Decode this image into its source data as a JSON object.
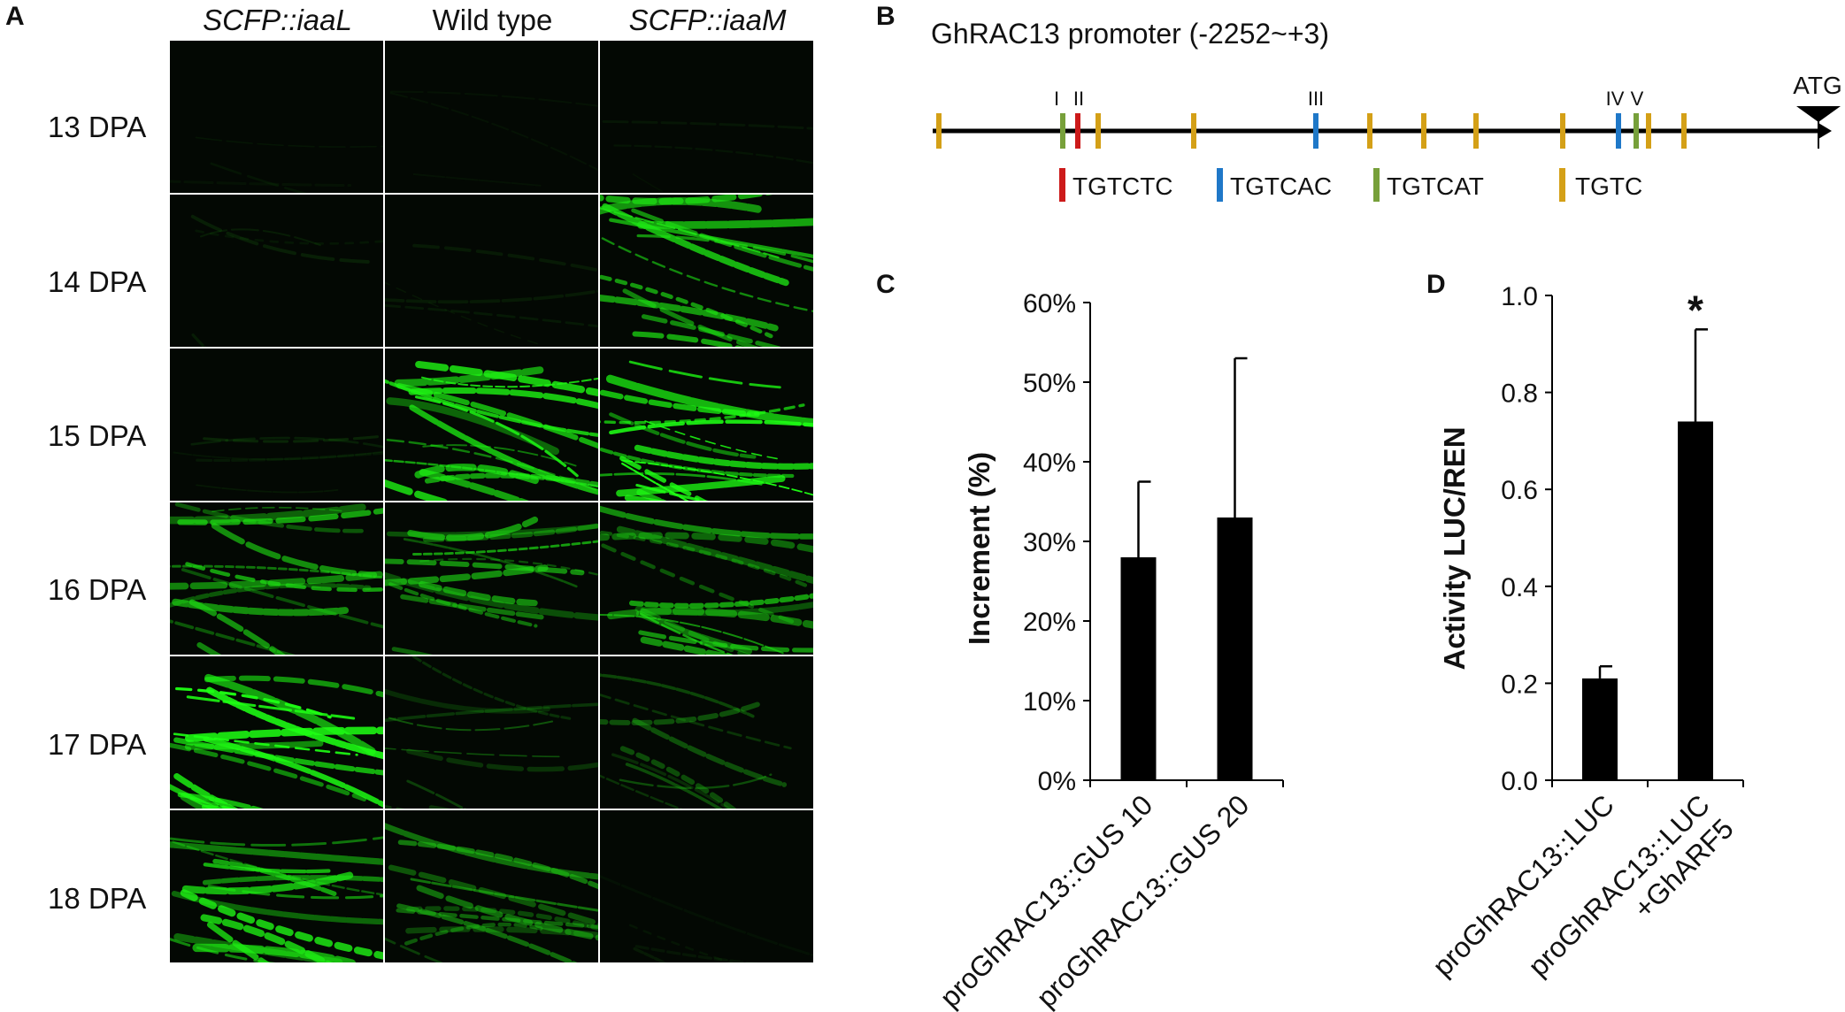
{
  "panels": {
    "a": "A",
    "b": "B",
    "c": "C",
    "d": "D"
  },
  "panel_a": {
    "columns": [
      "SCFP::iaaL",
      "Wild type",
      "SCFP::iaaM"
    ],
    "rows": [
      "13 DPA",
      "14 DPA",
      "15 DPA",
      "16 DPA",
      "17 DPA",
      "18 DPA"
    ],
    "fluorescence_level": [
      [
        0.02,
        0.02,
        0.02
      ],
      [
        0.1,
        0.05,
        0.8
      ],
      [
        0.12,
        0.9,
        1.0
      ],
      [
        0.75,
        0.7,
        0.75
      ],
      [
        1.0,
        0.4,
        0.4
      ],
      [
        0.85,
        0.55,
        0.05
      ]
    ]
  },
  "panel_b": {
    "title": "GhRAC13 promoter (-2252~+3)",
    "atg_label": "ATG",
    "roman_labels": [
      "I",
      "II",
      "III",
      "IV",
      "V"
    ],
    "legend": [
      {
        "label": "TGTCTC",
        "color": "#cc1a1a"
      },
      {
        "label": "TGTCAC",
        "color": "#1f78c8"
      },
      {
        "label": "TGTCAT",
        "color": "#77a03a"
      },
      {
        "label": "TGTC",
        "color": "#d4a017"
      }
    ]
  },
  "chart_data": [
    {
      "type": "bar",
      "panel": "C",
      "categories": [
        "proGhRAC13::GUS 10",
        "proGhRAC13::GUS 20"
      ],
      "values": [
        28,
        33
      ],
      "errors": [
        9.5,
        20
      ],
      "ylabel": "Increment (%)",
      "ylim": [
        0,
        60
      ],
      "yticks": [
        "0%",
        "10%",
        "20%",
        "30%",
        "40%",
        "50%",
        "60%"
      ],
      "bar_color": "#000000",
      "grid": false
    },
    {
      "type": "bar",
      "panel": "D",
      "categories": [
        "proGhRAC13::LUC",
        "proGhRAC13::LUC +GhARF5"
      ],
      "values": [
        0.21,
        0.74
      ],
      "errors": [
        0.025,
        0.19
      ],
      "ylabel": "Activity LUC/REN",
      "ylim": [
        0,
        1.0
      ],
      "yticks": [
        "0.0",
        "0.2",
        "0.4",
        "0.6",
        "0.8",
        "1.0"
      ],
      "significance": "*",
      "bar_color": "#000000",
      "grid": false
    }
  ]
}
